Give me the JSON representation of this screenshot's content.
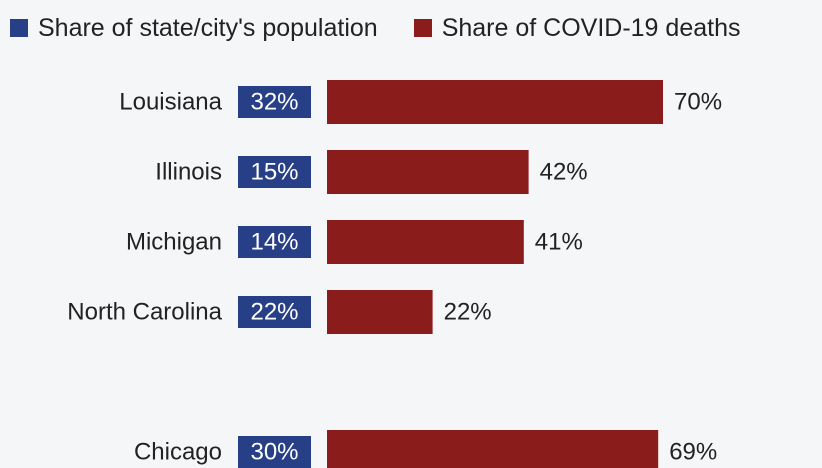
{
  "colors": {
    "population": "#273f86",
    "deaths": "#8a1c1c",
    "text": "#222222",
    "badge_text": "#ffffff"
  },
  "legend": {
    "population_label": "Share of state/city's population",
    "deaths_label": "Share of COVID-19 deaths"
  },
  "chart_data": {
    "type": "bar",
    "categories": [
      "Louisiana",
      "Illinois",
      "Michigan",
      "North Carolina",
      "Chicago"
    ],
    "series": [
      {
        "name": "Share of state/city's population",
        "values": [
          32,
          15,
          14,
          22,
          30
        ],
        "labels": [
          "32%",
          "15%",
          "14%",
          "22%",
          "30%"
        ]
      },
      {
        "name": "Share of COVID-19 deaths",
        "values": [
          70,
          42,
          41,
          22,
          69
        ],
        "labels": [
          "70%",
          "42%",
          "41%",
          "22%",
          "69%"
        ]
      }
    ],
    "unit": "%",
    "xlim": [
      0,
      100
    ],
    "legend_position": "top"
  }
}
